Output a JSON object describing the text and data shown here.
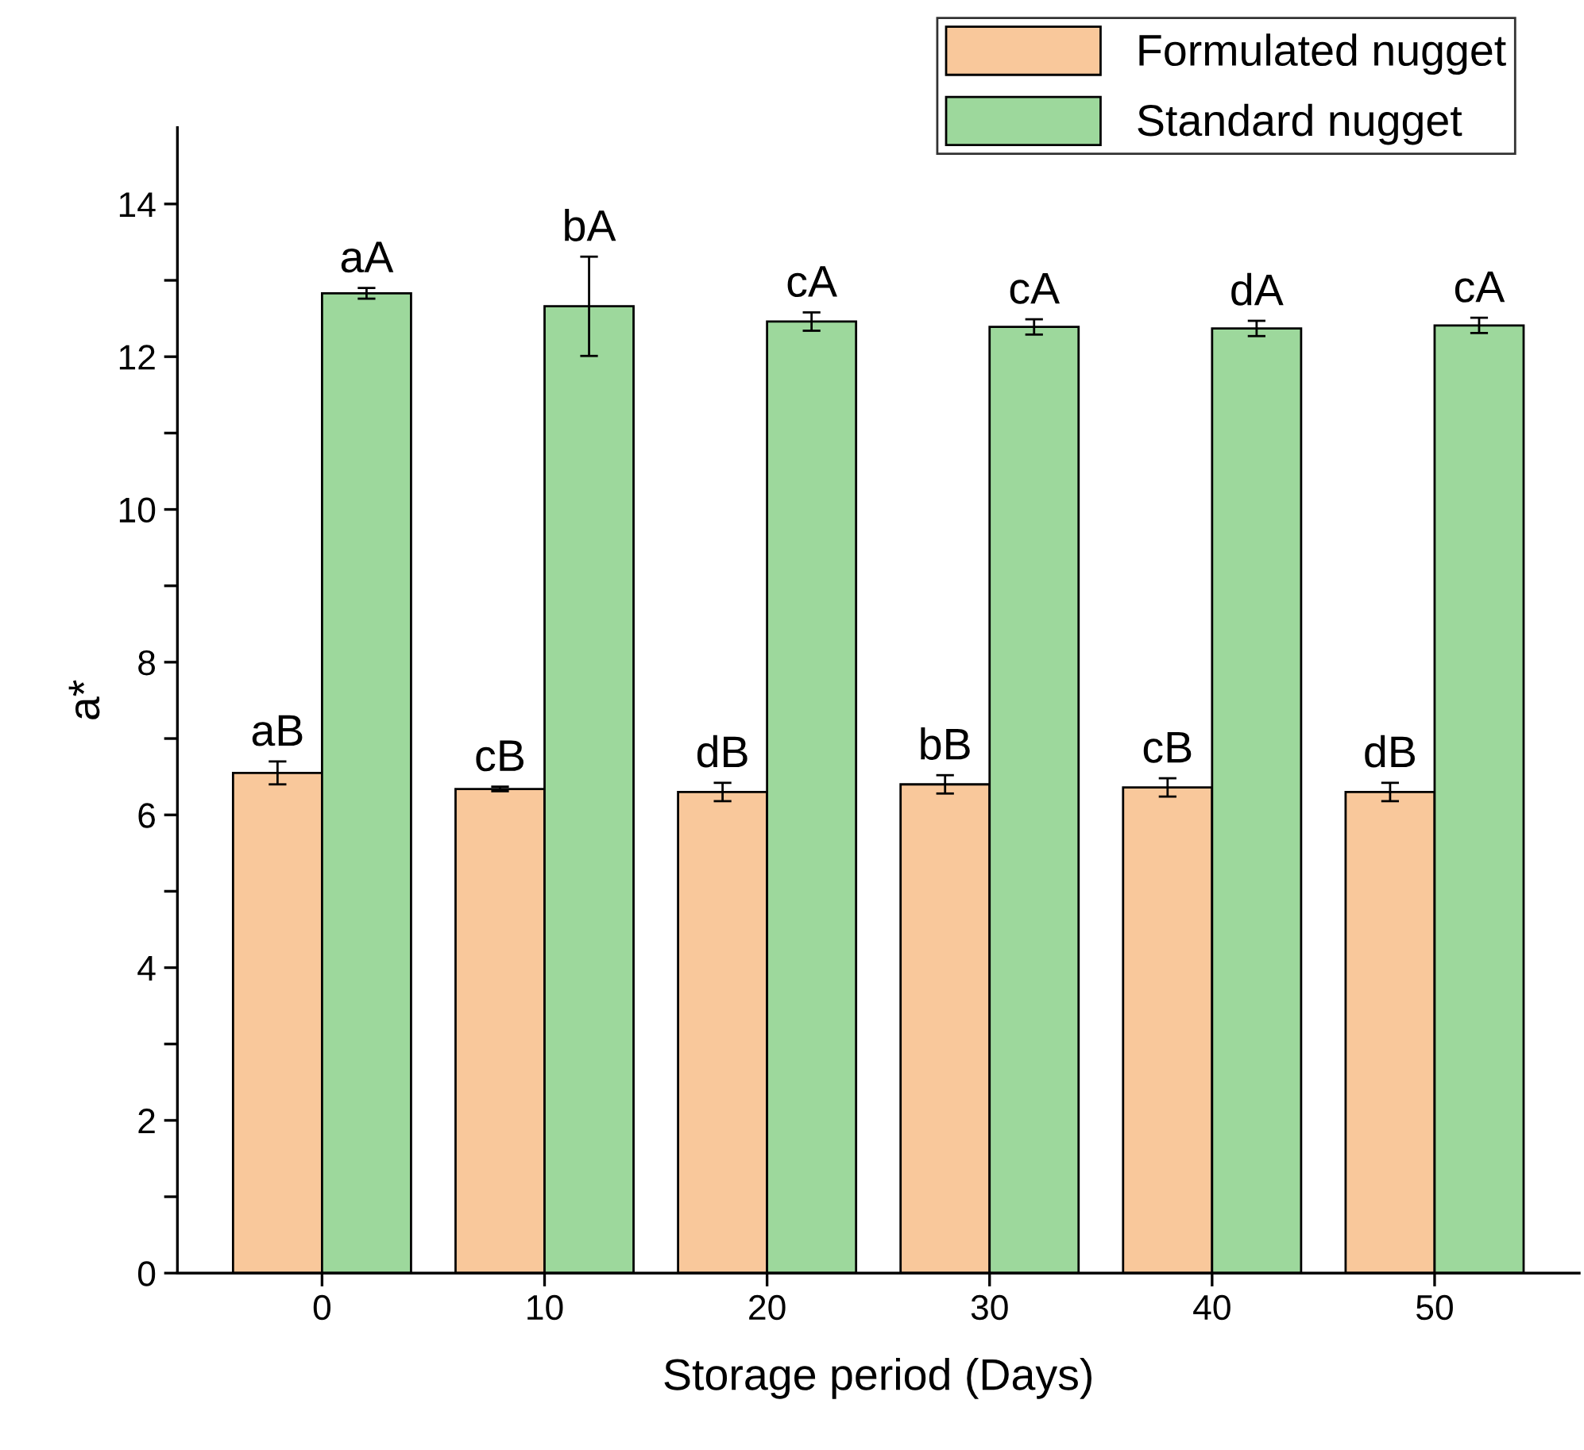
{
  "chart_data": {
    "type": "bar",
    "xlabel": "Storage period (Days)",
    "ylabel": "a*",
    "categories": [
      "0",
      "10",
      "20",
      "30",
      "40",
      "50"
    ],
    "series": [
      {
        "name": "Formulated nugget",
        "color": "#f9c89b",
        "values": [
          6.55,
          6.34,
          6.3,
          6.4,
          6.36,
          6.3
        ],
        "errors": [
          0.15,
          0.03,
          0.12,
          0.12,
          0.12,
          0.12
        ]
      },
      {
        "name": "Standard nugget",
        "color": "#9dd89c",
        "values": [
          12.83,
          12.66,
          12.46,
          12.39,
          12.37,
          12.41
        ],
        "errors": [
          0.07,
          0.65,
          0.12,
          0.1,
          0.1,
          0.1
        ]
      }
    ],
    "ylim": [
      0,
      15
    ],
    "yticks": [
      0,
      {
        "value": 1,
        "label": null
      },
      2,
      {
        "value": 3,
        "label": null
      },
      4,
      {
        "value": 5,
        "label": null
      },
      6,
      {
        "value": 7,
        "label": null
      },
      8,
      {
        "value": 9,
        "label": null
      },
      10,
      {
        "value": 11,
        "label": null
      },
      12,
      {
        "value": 13,
        "label": null
      },
      14
    ],
    "annotations": [
      {
        "text": "aB",
        "x": "0",
        "y": 6.55
      },
      {
        "text": "cB",
        "x": "10",
        "y": 6.34
      },
      {
        "text": "dB",
        "x": "20",
        "y": 6.3
      },
      {
        "text": "bB",
        "x": "30",
        "y": 6.4
      },
      {
        "text": "cB",
        "x": "40",
        "y": 6.36
      },
      {
        "text": "dB",
        "x": "50",
        "y": 6.3
      },
      {
        "text": "aA",
        "x": "0",
        "y": 12.83
      },
      {
        "text": "bA",
        "x": "10",
        "y": 12.66
      },
      {
        "text": "cA",
        "x": "20",
        "y": 12.46
      },
      {
        "text": "cA",
        "x": "30",
        "y": 12.39
      },
      {
        "text": "dA",
        "x": "40",
        "y": 12.37
      },
      {
        "text": "cA",
        "x": "50",
        "y": 12.41
      }
    ],
    "legend": "top right",
    "grid": false
  }
}
